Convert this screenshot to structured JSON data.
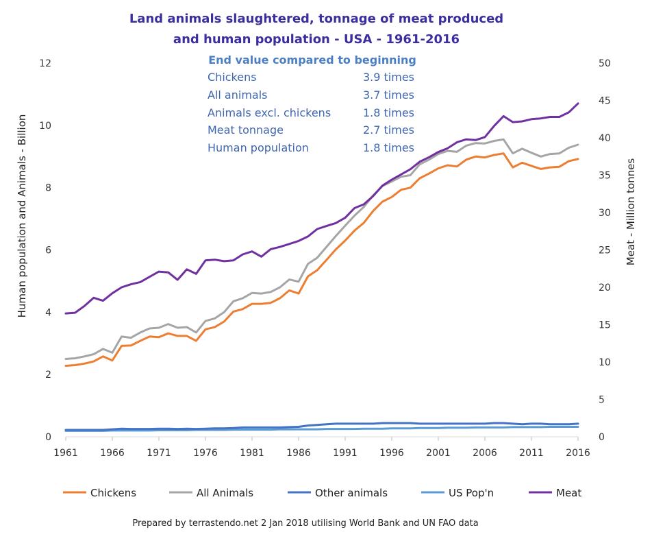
{
  "chart_data": {
    "type": "line",
    "title_lines": [
      "Land  animals slaughtered, tonnage of meat produced",
      "and human population - USA - 1961-2016"
    ],
    "summary": {
      "heading": "End value compared to beginning",
      "rows": [
        {
          "label": "Chickens",
          "value": "3.9 times"
        },
        {
          "label": "All animals",
          "value": "3.7 times"
        },
        {
          "label": "Animals excl. chickens",
          "value": "1.8 times"
        },
        {
          "label": "Meat tonnage",
          "value": "2.7 times"
        },
        {
          "label": "Human population",
          "value": "1.8 times"
        }
      ]
    },
    "x_ticks": [
      "1961",
      "1966",
      "1971",
      "1976",
      "1981",
      "1986",
      "1991",
      "1996",
      "2001",
      "2006",
      "2011",
      "2016"
    ],
    "xlim": [
      1961,
      2016
    ],
    "left_axis": {
      "label": "Human population and Animals - Billion",
      "ylim": [
        0,
        12
      ],
      "ticks": [
        "0",
        "2",
        "4",
        "6",
        "8",
        "10",
        "12"
      ]
    },
    "right_axis": {
      "label": "Meat - Million tonnes",
      "ylim": [
        0,
        50
      ],
      "ticks": [
        "0",
        "5",
        "10",
        "15",
        "20",
        "25",
        "30",
        "35",
        "40",
        "45",
        "50"
      ]
    },
    "grid": false,
    "legend_placement": "bottom",
    "series": [
      {
        "name": "Chickens",
        "color": "#ed7d31",
        "axis": "left",
        "values": [
          2.28,
          2.3,
          2.35,
          2.42,
          2.58,
          2.45,
          2.92,
          2.93,
          3.08,
          3.22,
          3.2,
          3.32,
          3.24,
          3.24,
          3.08,
          3.45,
          3.52,
          3.7,
          4.02,
          4.1,
          4.27,
          4.27,
          4.3,
          4.45,
          4.7,
          4.6,
          5.15,
          5.35,
          5.68,
          6.02,
          6.3,
          6.62,
          6.87,
          7.25,
          7.55,
          7.7,
          7.93,
          8.0,
          8.3,
          8.45,
          8.62,
          8.72,
          8.68,
          8.9,
          9.0,
          8.97,
          9.05,
          9.1,
          8.65,
          8.8,
          8.7,
          8.6,
          8.65,
          8.67,
          8.85,
          8.92
        ]
      },
      {
        "name": "All Animals",
        "color": "#a5a5a5",
        "axis": "left",
        "values": [
          2.5,
          2.52,
          2.58,
          2.65,
          2.82,
          2.7,
          3.22,
          3.18,
          3.35,
          3.48,
          3.5,
          3.62,
          3.5,
          3.52,
          3.35,
          3.72,
          3.8,
          4.0,
          4.35,
          4.45,
          4.62,
          4.6,
          4.65,
          4.8,
          5.05,
          4.98,
          5.55,
          5.75,
          6.1,
          6.45,
          6.78,
          7.1,
          7.38,
          7.75,
          8.05,
          8.2,
          8.35,
          8.4,
          8.75,
          8.9,
          9.08,
          9.18,
          9.15,
          9.35,
          9.43,
          9.42,
          9.5,
          9.55,
          9.1,
          9.25,
          9.12,
          9.0,
          9.08,
          9.1,
          9.28,
          9.38
        ]
      },
      {
        "name": "Other animals",
        "color": "#4472c4",
        "axis": "left",
        "values": [
          0.22,
          0.22,
          0.22,
          0.22,
          0.22,
          0.24,
          0.26,
          0.25,
          0.25,
          0.25,
          0.26,
          0.26,
          0.25,
          0.26,
          0.25,
          0.26,
          0.27,
          0.27,
          0.28,
          0.3,
          0.3,
          0.3,
          0.3,
          0.3,
          0.31,
          0.32,
          0.36,
          0.38,
          0.4,
          0.42,
          0.42,
          0.42,
          0.42,
          0.42,
          0.44,
          0.44,
          0.44,
          0.44,
          0.42,
          0.42,
          0.42,
          0.42,
          0.42,
          0.42,
          0.42,
          0.42,
          0.44,
          0.44,
          0.42,
          0.4,
          0.42,
          0.42,
          0.4,
          0.4,
          0.4,
          0.42
        ]
      },
      {
        "name": "US Pop'n",
        "color": "#5b9bd5",
        "axis": "left",
        "values": [
          0.19,
          0.19,
          0.19,
          0.19,
          0.19,
          0.2,
          0.2,
          0.2,
          0.2,
          0.2,
          0.21,
          0.21,
          0.21,
          0.21,
          0.22,
          0.22,
          0.22,
          0.22,
          0.23,
          0.23,
          0.23,
          0.23,
          0.23,
          0.24,
          0.24,
          0.24,
          0.24,
          0.24,
          0.25,
          0.25,
          0.25,
          0.25,
          0.26,
          0.26,
          0.26,
          0.27,
          0.27,
          0.27,
          0.28,
          0.28,
          0.28,
          0.29,
          0.29,
          0.29,
          0.3,
          0.3,
          0.3,
          0.3,
          0.31,
          0.31,
          0.31,
          0.31,
          0.32,
          0.32,
          0.32,
          0.32
        ]
      },
      {
        "name": "Meat",
        "color": "#7030a0",
        "axis": "right",
        "values": [
          16.5,
          16.6,
          17.5,
          18.6,
          18.2,
          19.2,
          20.0,
          20.4,
          20.7,
          21.4,
          22.1,
          22.0,
          21.0,
          22.4,
          21.8,
          23.6,
          23.7,
          23.5,
          23.6,
          24.4,
          24.8,
          24.1,
          25.1,
          25.4,
          25.8,
          26.2,
          26.8,
          27.8,
          28.2,
          28.6,
          29.3,
          30.6,
          31.1,
          32.2,
          33.6,
          34.4,
          35.1,
          35.8,
          36.8,
          37.4,
          38.1,
          38.6,
          39.4,
          39.8,
          39.7,
          40.1,
          41.6,
          42.9,
          42.1,
          42.2,
          42.5,
          42.6,
          42.8,
          42.8,
          43.4,
          44.6
        ]
      }
    ]
  },
  "credit": "Prepared by terrastendo.net 2 Jan 2018 utilising World Bank and UN FAO data"
}
